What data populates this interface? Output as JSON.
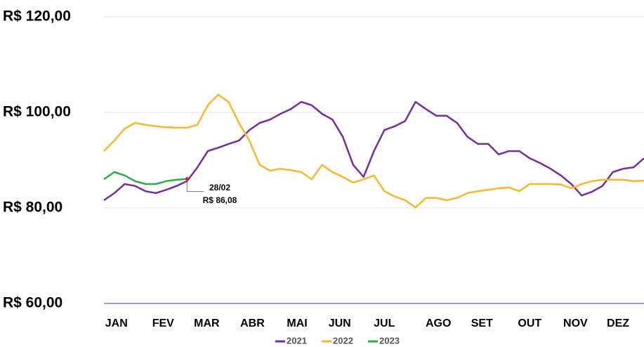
{
  "chart_data": {
    "type": "line",
    "x": [
      0,
      1,
      2,
      3,
      4,
      5,
      6,
      7,
      8,
      9,
      10,
      11,
      12,
      13,
      14,
      15,
      16,
      17,
      18,
      19,
      20,
      21,
      22,
      23,
      24,
      25,
      26,
      27,
      28,
      29,
      30,
      31,
      32,
      33,
      34,
      35,
      36,
      37,
      38,
      39,
      40,
      41,
      42,
      43,
      44,
      45,
      46,
      47,
      48,
      49,
      50,
      51,
      52
    ],
    "xlim": [
      0,
      52
    ],
    "xticks": [
      {
        "value": 1.2,
        "label": "JAN"
      },
      {
        "value": 5.7,
        "label": "FEV"
      },
      {
        "value": 9.9,
        "label": "MAR"
      },
      {
        "value": 14.3,
        "label": "ABR"
      },
      {
        "value": 18.6,
        "label": "MAI"
      },
      {
        "value": 22.7,
        "label": "JUN"
      },
      {
        "value": 27,
        "label": "JUL"
      },
      {
        "value": 32.2,
        "label": "AGO"
      },
      {
        "value": 36.4,
        "label": "SET"
      },
      {
        "value": 41,
        "label": "OUT"
      },
      {
        "value": 45.4,
        "label": "NOV"
      },
      {
        "value": 49.5,
        "label": "DEZ"
      }
    ],
    "ylim": [
      60,
      120
    ],
    "yticks": [
      {
        "value": 60,
        "label": "R$ 60,00"
      },
      {
        "value": 80,
        "label": "R$ 80,00"
      },
      {
        "value": 100,
        "label": "R$ 100,00"
      },
      {
        "value": 120,
        "label": "R$ 120,00"
      }
    ],
    "grid": true,
    "legend": "bottom",
    "series": [
      {
        "name": "2021",
        "color": "#7030a0",
        "values": [
          81.6,
          83.1,
          85,
          84.6,
          83.5,
          83.1,
          83.8,
          84.6,
          85.6,
          88.5,
          91.9,
          92.6,
          93.4,
          94.1,
          96.3,
          97.8,
          98.5,
          99.7,
          100.7,
          102.2,
          101.5,
          99.7,
          98.5,
          94.9,
          89,
          86.5,
          91.9,
          96.3,
          97.1,
          98.2,
          102.2,
          100.7,
          99.3,
          99.3,
          97.8,
          94.9,
          93.4,
          93.4,
          91.2,
          91.9,
          91.9,
          90.4,
          89.4,
          88.2,
          86.8,
          85,
          82.6,
          83.4,
          84.6,
          87.5,
          88.2,
          88.5,
          90.4
        ]
      },
      {
        "name": "2022",
        "color": "#f7b731",
        "values": [
          91.9,
          94.1,
          96.6,
          97.8,
          97.4,
          97.1,
          96.9,
          96.8,
          96.8,
          97.4,
          101.5,
          103.7,
          102.2,
          97.8,
          94.1,
          89,
          87.8,
          88.2,
          87.9,
          87.5,
          86,
          89,
          87.5,
          86.5,
          85.3,
          86,
          86.8,
          83.5,
          82.4,
          81.6,
          80.1,
          82.1,
          82.1,
          81.6,
          82.1,
          83.1,
          83.5,
          83.8,
          84.1,
          84.3,
          83.5,
          85,
          85,
          85,
          84.9,
          84.1,
          85,
          85.6,
          85.9,
          85.9,
          85.9,
          85.6,
          85.7
        ]
      },
      {
        "name": "2023",
        "color": "#2eaa4a",
        "values": [
          86,
          87.5,
          86.8,
          85.6,
          85,
          85,
          85.6,
          85.9,
          86.08,
          null,
          null,
          null,
          null,
          null,
          null,
          null,
          null,
          null,
          null,
          null,
          null,
          null,
          null,
          null,
          null,
          null,
          null,
          null,
          null,
          null,
          null,
          null,
          null,
          null,
          null,
          null,
          null,
          null,
          null,
          null,
          null,
          null,
          null,
          null,
          null,
          null,
          null,
          null,
          null,
          null,
          null,
          null,
          null
        ]
      }
    ],
    "annotation": {
      "date": "28/02",
      "value": "R$ 86,08"
    }
  }
}
